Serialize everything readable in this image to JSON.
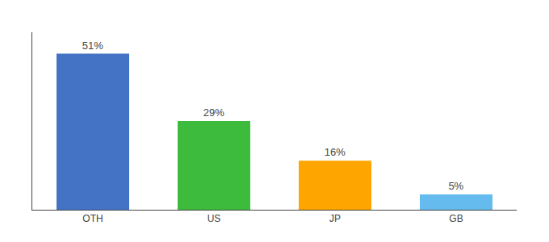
{
  "chart_data": {
    "type": "bar",
    "categories": [
      "OTH",
      "US",
      "JP",
      "GB"
    ],
    "values": [
      51,
      29,
      16,
      5
    ],
    "value_labels": [
      "51%",
      "29%",
      "16%",
      "5%"
    ],
    "data_labels": true,
    "colors": [
      "#4472C4",
      "#3DBB3D",
      "#FFA500",
      "#66BBEE"
    ],
    "ylim": [
      0,
      58
    ],
    "tick_labels": "x",
    "grid": false
  }
}
